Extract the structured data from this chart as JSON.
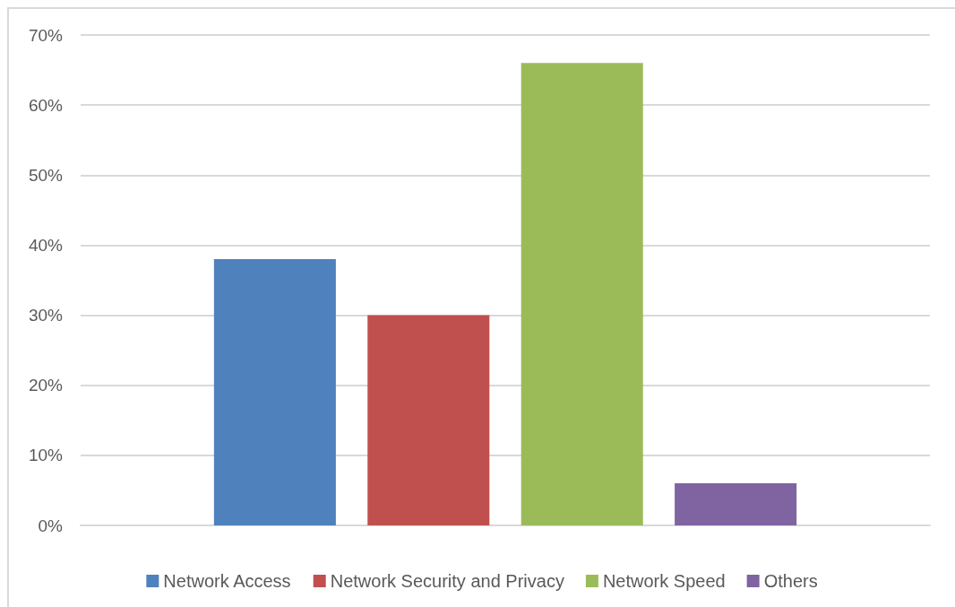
{
  "chart_data": {
    "type": "bar",
    "categories": [
      null
    ],
    "series": [
      {
        "name": "Network Access",
        "color": "#4f81bd",
        "values": [
          38
        ]
      },
      {
        "name": "Network Security and Privacy",
        "color": "#c0504d",
        "values": [
          30
        ]
      },
      {
        "name": "Network Speed",
        "color": "#9bbb59",
        "values": [
          66
        ]
      },
      {
        "name": "Others",
        "color": "#8064a2",
        "values": [
          6
        ]
      }
    ],
    "ylim": [
      0,
      70
    ],
    "yticks": [
      {
        "value": 0,
        "label": "0%"
      },
      {
        "value": 10,
        "label": "10%"
      },
      {
        "value": 20,
        "label": "20%"
      },
      {
        "value": 30,
        "label": "30%"
      },
      {
        "value": 40,
        "label": "40%"
      },
      {
        "value": 50,
        "label": "50%"
      },
      {
        "value": 60,
        "label": "60%"
      },
      {
        "value": 70,
        "label": "70%"
      }
    ],
    "grid": "y",
    "legend": "bottom"
  }
}
